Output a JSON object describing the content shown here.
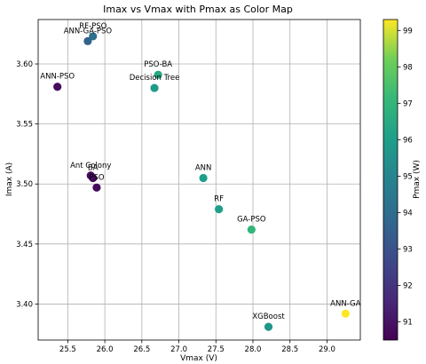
{
  "chart_data": {
    "type": "scatter",
    "title": "Imax vs Vmax with Pmax as Color Map",
    "xlabel": "Vmax (V)",
    "ylabel": "Imax (A)",
    "colorbar_label": "Pmax (W)",
    "xlim": [
      25.1,
      29.45
    ],
    "ylim": [
      3.37,
      3.637
    ],
    "clim": [
      90.5,
      99.3
    ],
    "xticks": [
      "25.5",
      "26.0",
      "26.5",
      "27.0",
      "27.5",
      "28.0",
      "28.5",
      "29.0"
    ],
    "yticks": [
      "3.40",
      "3.45",
      "3.50",
      "3.55",
      "3.60"
    ],
    "cticks": [
      "91",
      "92",
      "93",
      "94",
      "95",
      "96",
      "97",
      "98",
      "99"
    ],
    "grid": true,
    "colormap": "viridis",
    "points": [
      {
        "label": "RF-PSO",
        "x": 25.84,
        "y": 3.623,
        "c": 94.2
      },
      {
        "label": "ANN-GA-PSO",
        "x": 25.77,
        "y": 3.619,
        "c": 93.6
      },
      {
        "label": "PSO-BA",
        "x": 26.72,
        "y": 3.591,
        "c": 96.4
      },
      {
        "label": "Decision Tree",
        "x": 26.67,
        "y": 3.58,
        "c": 95.9
      },
      {
        "label": "ANN-PSO",
        "x": 25.36,
        "y": 3.581,
        "c": 90.8
      },
      {
        "label": "Ant Colony",
        "x": 25.81,
        "y": 3.507,
        "c": 90.8
      },
      {
        "label": "BA",
        "x": 25.84,
        "y": 3.505,
        "c": 90.8
      },
      {
        "label": "PSO",
        "x": 25.89,
        "y": 3.497,
        "c": 90.8
      },
      {
        "label": "ANN",
        "x": 27.33,
        "y": 3.505,
        "c": 96.0
      },
      {
        "label": "RF",
        "x": 27.54,
        "y": 3.479,
        "c": 96.0
      },
      {
        "label": "GA-PSO",
        "x": 27.98,
        "y": 3.462,
        "c": 97.0
      },
      {
        "label": "XGBoost",
        "x": 28.21,
        "y": 3.381,
        "c": 95.7
      },
      {
        "label": "ANN-GA",
        "x": 29.25,
        "y": 3.392,
        "c": 99.3
      }
    ]
  }
}
